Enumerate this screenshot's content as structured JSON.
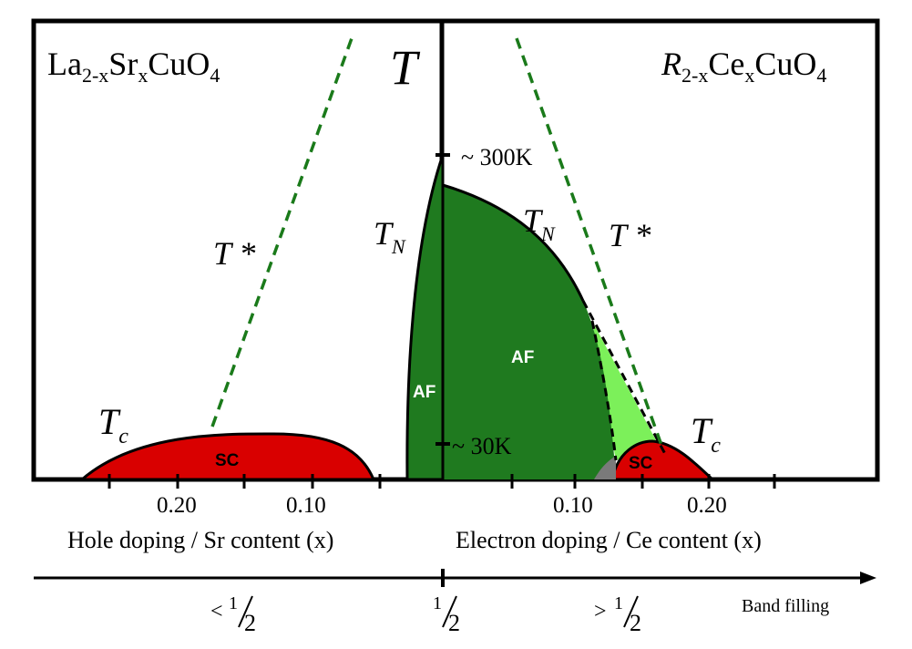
{
  "titles": {
    "left_base": "La",
    "left_sub1": "2-x",
    "left_mid": "Sr",
    "left_sub2": "x",
    "left_end": "CuO",
    "left_sub3": "4",
    "right_base": "R",
    "right_sub1": "2-x",
    "right_mid": "Ce",
    "right_sub2": "x",
    "right_end": "CuO",
    "right_sub3": "4"
  },
  "axis": {
    "temperature_label": "T",
    "temp_300": "~ 300K",
    "temp_30": "~ 30K"
  },
  "curves": {
    "tstar_left": "T *",
    "tstar_right": "T *",
    "tn_left_main": "T",
    "tn_left_sub": "N",
    "tn_right_main": "T",
    "tn_right_sub": "N",
    "tc_left_main": "T",
    "tc_left_sub": "c",
    "tc_right_main": "T",
    "tc_right_sub": "c"
  },
  "regions": {
    "sc_left": "SC",
    "sc_right": "SC",
    "af_left": "AF",
    "af_right": "AF"
  },
  "ticks": {
    "hole": [
      "0.20",
      "0.10"
    ],
    "electron": [
      "0.10",
      "0.20"
    ]
  },
  "xlabels": {
    "hole": "Hole doping / Sr content (x)",
    "electron": "Electron doping / Ce content (x)"
  },
  "band": {
    "title": "Band filling",
    "less_prefix": "<",
    "greater_prefix": ">",
    "numerator": "1",
    "denominator": "2"
  },
  "colors": {
    "af_green": "#1f7a1f",
    "sc_red": "#d90000",
    "dashed_green": "#1a7a1a",
    "light_green": "#7cf05a"
  }
}
